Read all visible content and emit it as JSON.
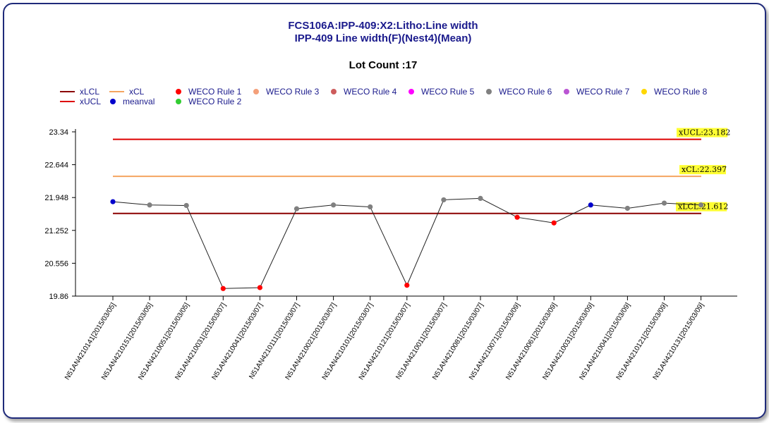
{
  "chart_data": {
    "type": "line",
    "title": "FCS106A:IPP-409:X2:Litho:Line width",
    "subtitle": "IPP-409 Line width(F)(Nest4)(Mean)",
    "lot_count_label": "Lot Count :17",
    "legend": [
      {
        "name": "xLCL",
        "kind": "line",
        "color": "#8b0000"
      },
      {
        "name": "xCL",
        "kind": "line",
        "color": "#f4a460"
      },
      {
        "name": "WECO Rule 1",
        "kind": "dot",
        "color": "#ff0000"
      },
      {
        "name": "WECO Rule 3",
        "kind": "dot",
        "color": "#f4a07a"
      },
      {
        "name": "WECO Rule 4",
        "kind": "dot",
        "color": "#cd5c5c"
      },
      {
        "name": "WECO Rule 5",
        "kind": "dot",
        "color": "#ff00ff"
      },
      {
        "name": "WECO Rule 6",
        "kind": "dot",
        "color": "#808080"
      },
      {
        "name": "WECO Rule 7",
        "kind": "dot",
        "color": "#ba55d3"
      },
      {
        "name": "WECO Rule 8",
        "kind": "dot",
        "color": "#ffd700"
      },
      {
        "name": "xUCL",
        "kind": "line",
        "color": "#dd0000"
      },
      {
        "name": "meanval",
        "kind": "dot",
        "color": "#0000cc"
      },
      {
        "name": "WECO Rule 2",
        "kind": "dot",
        "color": "#32cd32"
      }
    ],
    "ylim": [
      19.86,
      23.34
    ],
    "yticks": [
      "23.34",
      "22.644",
      "21.948",
      "21.252",
      "20.556",
      "19.86"
    ],
    "limits": {
      "ucl": {
        "value": 23.182,
        "label": "xUCL:23.182",
        "color": "#dd0000"
      },
      "cl": {
        "value": 22.397,
        "label": "xCL:22.397",
        "color": "#f4a460"
      },
      "lcl": {
        "value": 21.612,
        "label": "xLCL:21.612",
        "color": "#8b0000"
      }
    },
    "categories": [
      "N51AN4210141[2015/03/05]",
      "N51AN4210151[2015/03/05]",
      "N51AN4210051[2015/03/05]",
      "N51AN4210031[2015/03/07]",
      "N51AN4210041[2015/03/07]",
      "N51AN4210111[2015/03/07]",
      "N51AN4210021[2015/03/07]",
      "N51AN4210101[2015/03/07]",
      "N51AN4210121[2015/03/07]",
      "N51AN4210011[2015/03/07]",
      "N51AN4210081[2015/03/07]",
      "N51AN4210071[2015/03/09]",
      "N51AN4210061[2015/03/09]",
      "N51AN4210031[2015/03/09]",
      "N51AN4210041[2015/03/09]",
      "N51AN4210121[2015/03/09]",
      "N51AN4210131[2015/03/09]"
    ],
    "values": [
      21.86,
      21.79,
      21.78,
      20.02,
      20.04,
      21.71,
      21.79,
      21.75,
      20.09,
      21.9,
      21.93,
      21.53,
      21.41,
      21.79,
      21.72,
      21.83,
      21.79
    ],
    "point_colors": [
      "#0000cc",
      "#808080",
      "#808080",
      "#ff0000",
      "#ff0000",
      "#808080",
      "#808080",
      "#808080",
      "#ff0000",
      "#808080",
      "#808080",
      "#ff0000",
      "#ff0000",
      "#0000cc",
      "#808080",
      "#808080",
      "#808080"
    ]
  }
}
